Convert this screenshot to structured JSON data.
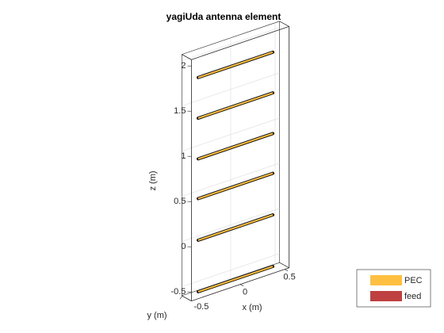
{
  "chart_data": {
    "type": "antenna3d",
    "title": "yagiUda antenna element",
    "xlabel": "x (m)",
    "ylabel": "y (m)",
    "zlabel": "z (m)",
    "xlim": [
      -0.55,
      0.55
    ],
    "ylim": [
      -0.55,
      0.55
    ],
    "zlim": [
      -0.6,
      2.07
    ],
    "xticks": [
      0,
      0.5
    ],
    "yticks": [
      -0.5
    ],
    "zticks": [
      -0.5,
      0,
      0.5,
      1,
      1.5,
      2
    ],
    "element_z": [
      -0.57,
      0,
      0.46,
      0.9,
      1.35,
      1.8
    ],
    "element_length": 0.84,
    "grid": true,
    "legend": [
      {
        "name": "PEC",
        "color": "#ffbf40"
      },
      {
        "name": "feed",
        "color": "#bf4040"
      }
    ]
  }
}
